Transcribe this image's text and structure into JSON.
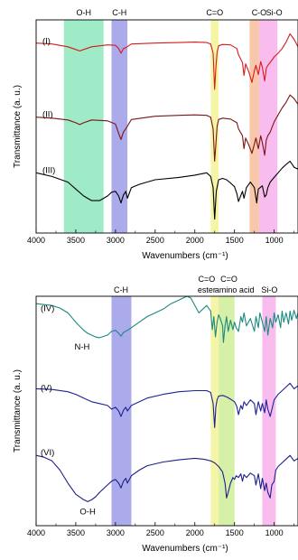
{
  "chart_data": [
    {
      "type": "line",
      "xlabel": "Wavenumbers (cm⁻¹)",
      "ylabel": "Transmittance (a. u.)",
      "xlim": [
        4000,
        700
      ],
      "x_ticks": [
        4000,
        3500,
        3000,
        2500,
        2000,
        1500,
        1000
      ],
      "bands": [
        {
          "label": "O-H",
          "from": 3650,
          "to": 3150,
          "color": "#7fe3b4"
        },
        {
          "label": "C-H",
          "from": 3050,
          "to": 2850,
          "color": "#8f8fe6"
        },
        {
          "label": "C=O",
          "from": 1800,
          "to": 1700,
          "color": "#f2f28a"
        },
        {
          "label": "C-O",
          "from": 1310,
          "to": 1190,
          "color": "#f7b58f"
        },
        {
          "label": "Si-O",
          "from": 1190,
          "to": 960,
          "color": "#f5a6e8"
        }
      ],
      "series": [
        {
          "name": "(I)",
          "color": "#d81b1b",
          "x": [
            4000,
            3800,
            3600,
            3500,
            3450,
            3400,
            3300,
            3100,
            3000,
            2960,
            2930,
            2900,
            2870,
            2800,
            2500,
            2200,
            2000,
            1850,
            1800,
            1770,
            1750,
            1735,
            1720,
            1700,
            1650,
            1550,
            1470,
            1450,
            1400,
            1380,
            1360,
            1320,
            1280,
            1250,
            1230,
            1200,
            1170,
            1150,
            1120,
            1100,
            1080,
            1050,
            1000,
            950,
            900,
            850,
            800,
            750,
            700
          ],
          "y": [
            0.5,
            0.52,
            0.58,
            0.64,
            0.67,
            0.64,
            0.58,
            0.54,
            0.55,
            0.62,
            0.72,
            0.62,
            0.6,
            0.52,
            0.5,
            0.49,
            0.48,
            0.49,
            0.52,
            0.72,
            1.5,
            1.05,
            0.7,
            0.56,
            0.53,
            0.54,
            0.62,
            0.75,
            0.92,
            1.2,
            0.95,
            1.12,
            1.35,
            1.1,
            0.98,
            1.18,
            0.9,
            1.02,
            1.32,
            1.05,
            0.98,
            0.92,
            0.8,
            0.72,
            0.62,
            0.48,
            0.3,
            0.42,
            0.58
          ]
        },
        {
          "name": "(II)",
          "color": "#7a1515",
          "x": [
            4000,
            3800,
            3600,
            3500,
            3450,
            3400,
            3300,
            3100,
            3000,
            2960,
            2930,
            2900,
            2870,
            2800,
            2500,
            2200,
            2000,
            1850,
            1800,
            1770,
            1750,
            1735,
            1720,
            1700,
            1650,
            1550,
            1470,
            1450,
            1400,
            1380,
            1360,
            1320,
            1280,
            1250,
            1230,
            1200,
            1170,
            1150,
            1120,
            1100,
            1080,
            1050,
            1000,
            950,
            900,
            850,
            800,
            750,
            700
          ],
          "y": [
            2.1,
            2.12,
            2.16,
            2.22,
            2.26,
            2.22,
            2.16,
            2.18,
            2.25,
            2.45,
            2.58,
            2.42,
            2.35,
            2.15,
            2.08,
            2.06,
            2.05,
            2.06,
            2.1,
            2.35,
            3.05,
            2.7,
            2.3,
            2.15,
            2.12,
            2.14,
            2.22,
            2.35,
            2.5,
            2.78,
            2.55,
            2.7,
            2.88,
            2.68,
            2.55,
            2.78,
            2.5,
            2.65,
            2.92,
            2.6,
            2.5,
            2.42,
            2.2,
            2.05,
            1.9,
            1.78,
            1.62,
            1.7,
            1.82
          ]
        },
        {
          "name": "(III)",
          "color": "#000000",
          "x": [
            4000,
            3800,
            3600,
            3500,
            3400,
            3300,
            3200,
            3100,
            3050,
            3000,
            2960,
            2930,
            2900,
            2870,
            2850,
            2800,
            2700,
            2500,
            2200,
            2000,
            1850,
            1800,
            1770,
            1750,
            1730,
            1700,
            1650,
            1600,
            1550,
            1500,
            1470,
            1450,
            1400,
            1380,
            1350,
            1300,
            1250,
            1220,
            1200,
            1150,
            1120,
            1100,
            1080,
            1050,
            1000,
            950,
            900,
            850,
            800,
            750,
            700
          ],
          "y": [
            3.3,
            3.38,
            3.5,
            3.65,
            3.8,
            3.9,
            3.9,
            3.8,
            3.72,
            3.7,
            3.8,
            3.95,
            3.78,
            3.7,
            3.85,
            3.62,
            3.55,
            3.45,
            3.4,
            3.35,
            3.3,
            3.38,
            3.62,
            4.3,
            3.7,
            3.45,
            3.42,
            3.45,
            3.52,
            3.6,
            3.75,
            3.92,
            3.7,
            3.85,
            3.62,
            3.5,
            3.62,
            3.95,
            3.65,
            3.58,
            3.82,
            3.78,
            3.62,
            3.5,
            3.4,
            3.3,
            3.2,
            3.12,
            3.05,
            3.18,
            3.22
          ]
        }
      ]
    },
    {
      "type": "line",
      "xlabel": "Wavenumbers (cm⁻¹)",
      "ylabel": "Transmittance (a. u.)",
      "xlim": [
        4000,
        700
      ],
      "x_ticks": [
        4000,
        3500,
        3000,
        2500,
        2000,
        1500,
        1000
      ],
      "bands": [
        {
          "label": "C-H",
          "from": 3050,
          "to": 2800,
          "color": "#8f8fe6"
        },
        {
          "label": "C=O ester",
          "from": 1800,
          "to": 1700,
          "color": "#f2f28a"
        },
        {
          "label": "C=O amino acid",
          "from": 1700,
          "to": 1500,
          "color": "#c8eb8a"
        },
        {
          "label": "Si-O",
          "from": 1150,
          "to": 980,
          "color": "#f5a6e8"
        }
      ],
      "band_top_labels": [
        {
          "text": "C=O",
          "x": 1850
        },
        {
          "text": "C=O",
          "x": 1570
        },
        {
          "text": "ester",
          "x": 1850
        },
        {
          "text": "amino acid",
          "x": 1500
        },
        {
          "text": "Si-O",
          "x": 1060
        },
        {
          "text": "C-H",
          "x": 2930
        }
      ],
      "annotations": [
        {
          "text": "N-H",
          "x": 3420,
          "y": 1.1
        },
        {
          "text": "O-H",
          "x": 3350,
          "y": 5.55
        }
      ],
      "series": [
        {
          "name": "(IV)",
          "color": "#1b8a80",
          "x": [
            4000,
            3800,
            3700,
            3600,
            3500,
            3400,
            3350,
            3300,
            3250,
            3200,
            3100,
            3050,
            3000,
            2960,
            2930,
            2900,
            2850,
            2800,
            2700,
            2600,
            2500,
            2400,
            2300,
            2200,
            2100,
            2050,
            2000,
            1950,
            1900,
            1850,
            1800,
            1780,
            1760,
            1740,
            1720,
            1700,
            1680,
            1650,
            1640,
            1620,
            1600,
            1580,
            1550,
            1520,
            1500,
            1480,
            1450,
            1420,
            1400,
            1380,
            1350,
            1300,
            1250,
            1230,
            1200,
            1180,
            1150,
            1120,
            1100,
            1080,
            1050,
            1020,
            1000,
            980,
            950,
            920,
            900,
            880,
            850,
            820,
            800,
            780,
            750,
            720,
            700
          ],
          "y": [
            0.2,
            0.25,
            0.32,
            0.45,
            0.7,
            0.92,
            1.0,
            1.05,
            1.1,
            1.12,
            1.05,
            0.95,
            0.92,
            1.0,
            1.08,
            0.98,
            0.92,
            0.85,
            0.7,
            0.55,
            0.45,
            0.35,
            0.2,
            0.1,
            0.0,
            0.05,
            0.25,
            0.45,
            0.35,
            0.25,
            0.4,
            0.9,
            0.55,
            1.1,
            0.7,
            0.5,
            0.6,
            0.8,
            1.25,
            0.8,
            0.55,
            0.95,
            0.65,
            0.9,
            0.7,
            0.85,
            0.95,
            0.55,
            0.7,
            0.45,
            0.8,
            0.6,
            0.95,
            0.55,
            0.85,
            0.45,
            0.7,
            0.95,
            0.55,
            1.05,
            0.6,
            0.85,
            0.45,
            0.7,
            0.5,
            0.85,
            0.4,
            0.7,
            0.45,
            0.75,
            0.4,
            0.65,
            0.38,
            0.6,
            0.45
          ]
        },
        {
          "name": "(V)",
          "color": "#20209a",
          "x": [
            4000,
            3800,
            3600,
            3500,
            3400,
            3300,
            3200,
            3100,
            3050,
            3000,
            2960,
            2930,
            2900,
            2870,
            2850,
            2800,
            2600,
            2400,
            2200,
            2000,
            1850,
            1800,
            1770,
            1750,
            1735,
            1720,
            1700,
            1650,
            1600,
            1550,
            1500,
            1470,
            1450,
            1420,
            1400,
            1380,
            1350,
            1300,
            1250,
            1230,
            1200,
            1170,
            1150,
            1120,
            1100,
            1080,
            1050,
            1000,
            950,
            900,
            850,
            800,
            750,
            700
          ],
          "y": [
            2.5,
            2.52,
            2.58,
            2.65,
            2.75,
            2.85,
            2.9,
            2.95,
            3.05,
            3.0,
            3.1,
            3.25,
            3.08,
            3.0,
            3.1,
            2.95,
            2.75,
            2.65,
            2.58,
            2.55,
            2.55,
            2.6,
            2.9,
            3.55,
            3.0,
            2.8,
            2.7,
            2.68,
            2.72,
            2.78,
            2.85,
            2.98,
            3.2,
            2.95,
            3.05,
            2.85,
            2.95,
            2.8,
            2.9,
            3.2,
            2.85,
            3.1,
            2.9,
            3.15,
            2.8,
            3.05,
            3.25,
            2.8,
            2.65,
            2.55,
            2.45,
            2.35,
            2.5,
            2.42
          ]
        },
        {
          "name": "(VI)",
          "color": "#1e1e8a",
          "x": [
            4000,
            3900,
            3800,
            3700,
            3600,
            3500,
            3400,
            3350,
            3300,
            3250,
            3200,
            3100,
            3050,
            3000,
            2960,
            2930,
            2900,
            2870,
            2850,
            2800,
            2700,
            2600,
            2400,
            2200,
            2000,
            1900,
            1850,
            1800,
            1750,
            1700,
            1650,
            1620,
            1600,
            1580,
            1550,
            1520,
            1500,
            1480,
            1450,
            1420,
            1400,
            1380,
            1350,
            1300,
            1250,
            1230,
            1200,
            1170,
            1150,
            1120,
            1100,
            1080,
            1050,
            1030,
            1000,
            980,
            950,
            900,
            850,
            800,
            750,
            700
          ],
          "y": [
            4.3,
            4.35,
            4.45,
            4.7,
            5.05,
            5.35,
            5.5,
            5.55,
            5.5,
            5.42,
            5.3,
            5.1,
            5.0,
            4.95,
            5.05,
            5.18,
            5.0,
            4.92,
            5.05,
            4.85,
            4.7,
            4.58,
            4.48,
            4.42,
            4.38,
            4.4,
            4.42,
            4.45,
            4.5,
            4.6,
            4.75,
            5.05,
            5.45,
            5.3,
            5.05,
            4.9,
            4.95,
            4.85,
            4.9,
            4.8,
            5.0,
            4.82,
            4.9,
            4.78,
            4.85,
            5.1,
            4.8,
            5.2,
            4.92,
            5.25,
            5.05,
            5.3,
            5.45,
            5.1,
            5.0,
            4.7,
            4.6,
            4.5,
            4.4,
            4.3,
            4.45,
            4.38
          ]
        }
      ]
    }
  ]
}
